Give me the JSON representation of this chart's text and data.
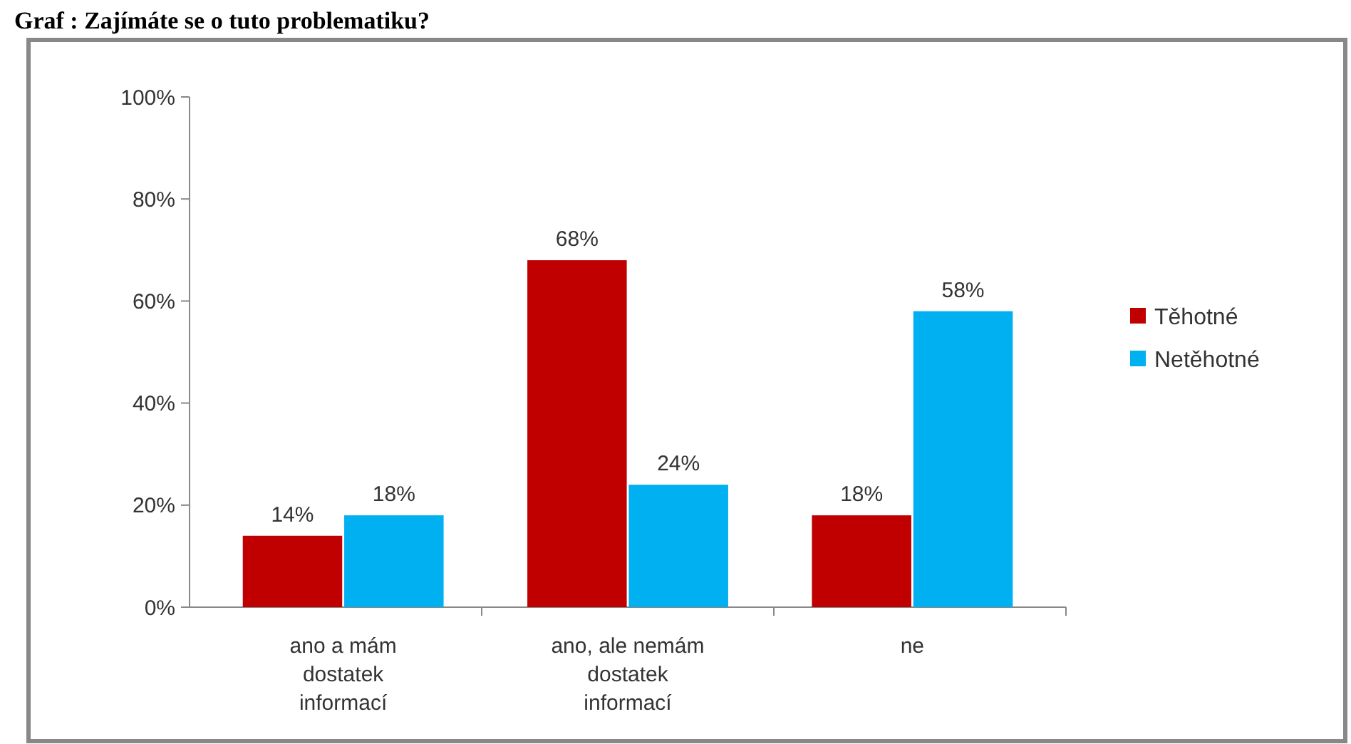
{
  "chart_data": {
    "type": "bar",
    "title": "Graf : Zajímáte se o tuto problematiku?",
    "categories": [
      "ano a mám dostatek informací",
      "ano, ale nemám dostatek informací",
      "ne"
    ],
    "series": [
      {
        "name": "Těhotné",
        "color": "#c00000",
        "values": [
          14,
          68,
          18
        ],
        "value_labels": [
          "14%",
          "68%",
          "18%"
        ]
      },
      {
        "name": "Netěhotné",
        "color": "#00b0f0",
        "values": [
          18,
          24,
          58
        ],
        "value_labels": [
          "18%",
          "24%",
          "58%"
        ]
      }
    ],
    "ylim": [
      0,
      100
    ],
    "yticks": [
      {
        "value": 0,
        "label": "0%"
      },
      {
        "value": 20,
        "label": "20%"
      },
      {
        "value": 40,
        "label": "40%"
      },
      {
        "value": 60,
        "label": "60%"
      },
      {
        "value": 80,
        "label": "80%"
      },
      {
        "value": 100,
        "label": "100%"
      }
    ],
    "legend": "right"
  }
}
